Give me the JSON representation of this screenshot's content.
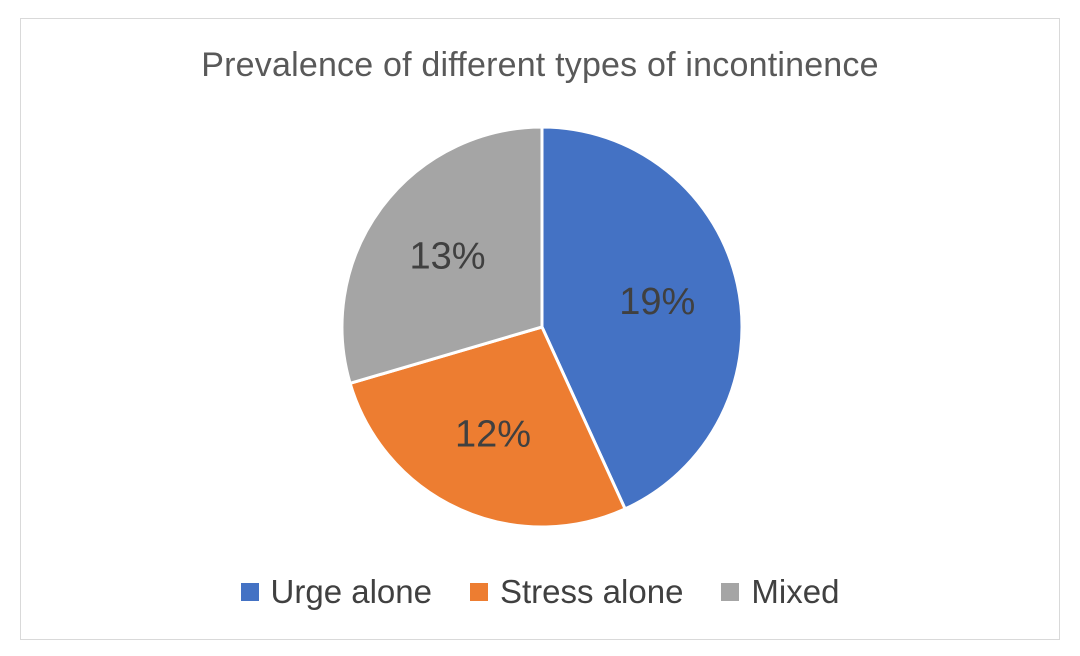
{
  "chart_data": {
    "type": "pie",
    "title": "Prevalence of different types of incontinence",
    "slices": [
      {
        "name": "Urge alone",
        "value": 19,
        "label": "19%",
        "color": "#4472C4"
      },
      {
        "name": "Stress alone",
        "value": 12,
        "label": "12%",
        "color": "#ED7D31"
      },
      {
        "name": "Mixed",
        "value": 13,
        "label": "13%",
        "color": "#A5A5A5"
      }
    ],
    "legend_position": "bottom",
    "start_angle": "12 o'clock",
    "direction": "clockwise"
  }
}
